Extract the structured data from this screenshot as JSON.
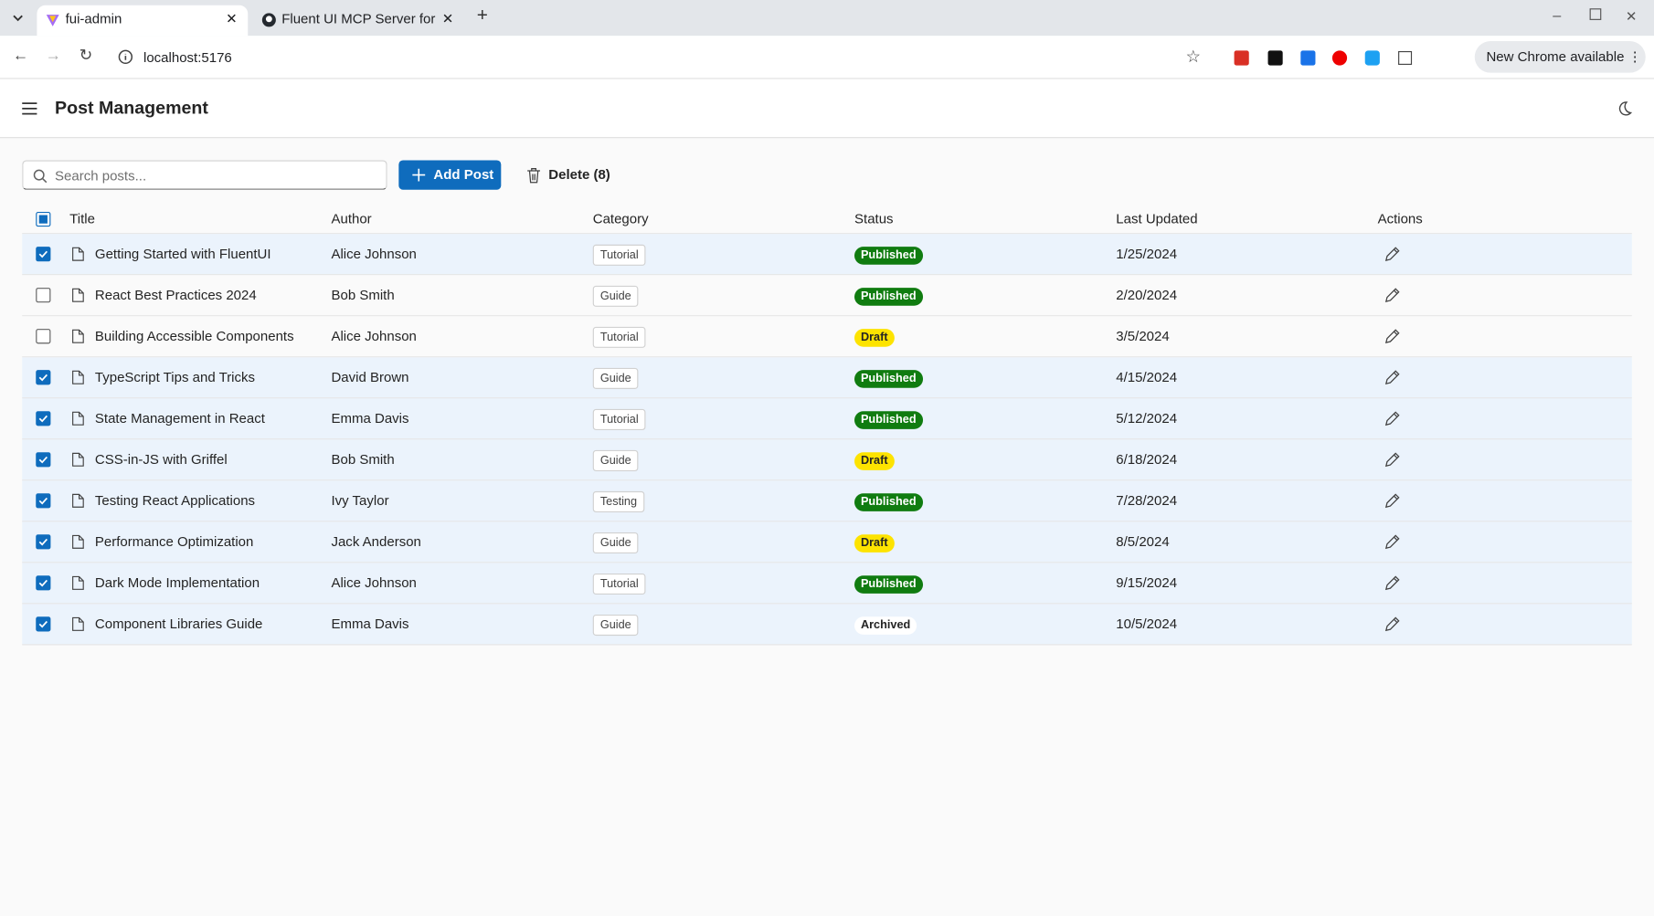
{
  "browser": {
    "tabs": [
      "fui-admin",
      "Fluent UI MCP Server for"
    ],
    "address": "localhost:5176",
    "update_button": "New Chrome available"
  },
  "header": {
    "title": "Post Management"
  },
  "toolbar": {
    "search_placeholder": "Search posts...",
    "add_button": "Add Post",
    "delete_button": "Delete (8)"
  },
  "table": {
    "columns": [
      "Title",
      "Author",
      "Category",
      "Status",
      "Last Updated",
      "Actions"
    ],
    "rows": [
      {
        "selected": true,
        "title": "Getting Started with FluentUI",
        "author": "Alice Johnson",
        "category": "Tutorial",
        "status": "Published",
        "updated": "1/25/2024"
      },
      {
        "selected": false,
        "title": "React Best Practices 2024",
        "author": "Bob Smith",
        "category": "Guide",
        "status": "Published",
        "updated": "2/20/2024"
      },
      {
        "selected": false,
        "title": "Building Accessible Components",
        "author": "Alice Johnson",
        "category": "Tutorial",
        "status": "Draft",
        "updated": "3/5/2024"
      },
      {
        "selected": true,
        "title": "TypeScript Tips and Tricks",
        "author": "David Brown",
        "category": "Guide",
        "status": "Published",
        "updated": "4/15/2024"
      },
      {
        "selected": true,
        "title": "State Management in React",
        "author": "Emma Davis",
        "category": "Tutorial",
        "status": "Published",
        "updated": "5/12/2024"
      },
      {
        "selected": true,
        "title": "CSS-in-JS with Griffel",
        "author": "Bob Smith",
        "category": "Guide",
        "status": "Draft",
        "updated": "6/18/2024"
      },
      {
        "selected": true,
        "title": "Testing React Applications",
        "author": "Ivy Taylor",
        "category": "Testing",
        "status": "Published",
        "updated": "7/28/2024"
      },
      {
        "selected": true,
        "title": "Performance Optimization",
        "author": "Jack Anderson",
        "category": "Guide",
        "status": "Draft",
        "updated": "8/5/2024"
      },
      {
        "selected": true,
        "title": "Dark Mode Implementation",
        "author": "Alice Johnson",
        "category": "Tutorial",
        "status": "Published",
        "updated": "9/15/2024"
      },
      {
        "selected": true,
        "title": "Component Libraries Guide",
        "author": "Emma Davis",
        "category": "Guide",
        "status": "Archived",
        "updated": "10/5/2024"
      }
    ]
  }
}
